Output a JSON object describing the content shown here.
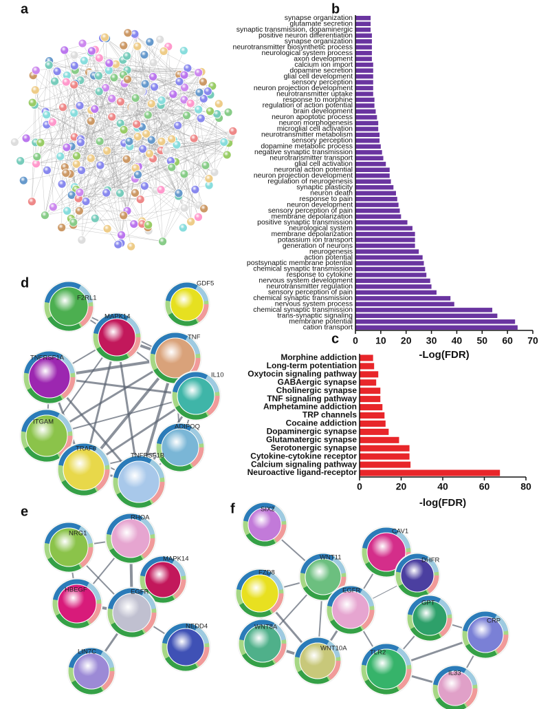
{
  "panel_labels": [
    "a",
    "b",
    "c",
    "d",
    "e",
    "f"
  ],
  "chart_data": [
    {
      "type": "bar",
      "orientation": "horizontal",
      "color": "#6a35a0",
      "categories": [
        "synapse organization",
        "glutamate secretion",
        "synaptic transmission, dopaminergic",
        "positive neuron differentiation",
        "synapse organization",
        "neurotransmitter biosynthetic process",
        "neurological system process",
        "axon development",
        "calcium ion import",
        "dopamine secretion",
        "glial cell development",
        "sensory perception",
        "neuron projection development",
        "neurotransmitter uptake",
        "response to morphine",
        "regulation of action potential",
        "brain development",
        "neuron apoptotic process",
        "neuron morphogenesis",
        "microglial cell activation",
        "neurotransmitter metabolism",
        "sensory perception",
        "dopamine metabolic process",
        "negative synaptic transmission",
        "neurotransmitter transport",
        "glial cell activation",
        "neuronal action potential",
        "neuron projection development",
        "regulation of neurogenesis",
        "synaptic plasticity",
        "neuron death",
        "response to pain",
        "neuron development",
        "sensory perception of pain",
        "membrane depolarization",
        "positive synaptic transmission",
        "neurological system",
        "membrane depolarization",
        "potassium ion transport",
        "generation of neurons",
        "neurogenesis",
        "action potential",
        "postsynaptic membrane potential",
        "chemical synaptic transmission",
        "response to cytokine",
        "nervous system development",
        "neurotransmitter regulation",
        "sensory perception of pain",
        "chemical synaptic transmission",
        "nervous system process",
        "chemical synaptic transmission",
        "trans-synaptic signaling",
        "membrane potential",
        "cation transport"
      ],
      "values": [
        6,
        6,
        6,
        6.5,
        6.5,
        6.5,
        6.5,
        6.5,
        7,
        7,
        7,
        7,
        7,
        7,
        7.5,
        7.5,
        8,
        8.5,
        9,
        9,
        9.5,
        9.5,
        10,
        10.5,
        11,
        12,
        13.5,
        13.5,
        14,
        15,
        16,
        16.5,
        17,
        17.5,
        18,
        20.5,
        22.5,
        23.5,
        23.5,
        23.5,
        25,
        26.5,
        27,
        27.5,
        28,
        29.5,
        30,
        32,
        37.5,
        39,
        54,
        56,
        63,
        64
      ],
      "xlim": [
        0,
        70
      ],
      "xticks": [
        0,
        10,
        20,
        30,
        40,
        50,
        60,
        70
      ],
      "xlabel": "-Log(FDR)"
    },
    {
      "type": "bar",
      "orientation": "horizontal",
      "color": "#e8262a",
      "categories": [
        "Morphine addiction",
        "Long-term potentiation",
        "Oxytocin signaling pathway",
        "GABAergic synapse",
        "Cholinergic synapse",
        "TNF signaling pathway",
        "Amphetamine addiction",
        "TRP channels",
        "Cocaine addiction",
        "Dopaminergic synapse",
        "Glutamatergic synapse",
        "Serotonergic synapse",
        "Cytokine-cytokine receptor",
        "Calcium signaling pathway",
        "Neuroactive ligand-receptor"
      ],
      "values": [
        6.5,
        7,
        9,
        8,
        10,
        10,
        11,
        12,
        12.5,
        14,
        19,
        24,
        24,
        24.5,
        67.5
      ],
      "xlim": [
        0,
        80
      ],
      "xticks": [
        0,
        20,
        40,
        60,
        80
      ],
      "xlabel": "-log(FDR)"
    }
  ],
  "networks": {
    "d": {
      "nodes": [
        "F2RL1",
        "MAPK14",
        "GDF5",
        "TNF",
        "TNFRSF1A",
        "IL10",
        "ITGAM",
        "ADIPOQ",
        "TRAF6",
        "TNFRSF1B"
      ]
    },
    "e": {
      "nodes": [
        "NRG1",
        "RHOA",
        "MAPK14",
        "HBEGF",
        "EGFR",
        "LIN7C",
        "NEDD4"
      ]
    },
    "f": {
      "nodes": [
        "SIX2",
        "WNT11",
        "FZD8",
        "CAV1",
        "DHFR",
        "EGFR",
        "GPT",
        "CRP",
        "WNT8A",
        "WNT10A",
        "TLR2",
        "IL33"
      ]
    }
  }
}
